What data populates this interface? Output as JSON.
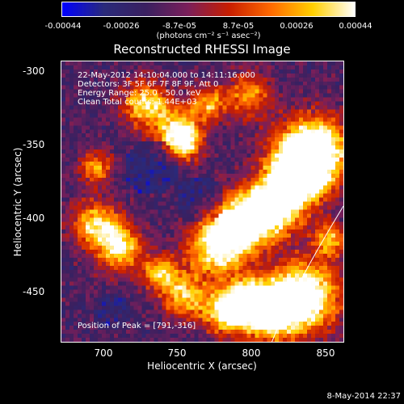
{
  "colorbar": {
    "ticks": [
      "-0.00044",
      "-0.00026",
      "-8.7e-05",
      "8.7e-05",
      "0.00026",
      "0.00044"
    ],
    "units": "(photons cm⁻² s⁻¹ asec⁻²)",
    "colors": [
      "#0000ff",
      "#2a2a7a",
      "#3a2060",
      "#7a1f5a",
      "#c81e00",
      "#ff6a00",
      "#ffd000",
      "#ffffff"
    ]
  },
  "title": "Reconstructed RHESSI Image",
  "info_lines": [
    "22-May-2012 14:10:04.000 to 14:11:16.000",
    "Detectors: 3F 5F 6F 7F 8F 9F, Att 0",
    "Energy Range: 25.0 - 50.0 keV",
    "Clean    Total counts: 1.44E+03"
  ],
  "peak_text": "Position of Peak = [791,-316]",
  "axes": {
    "xlabel": "Heliocentric X (arcsec)",
    "ylabel": "Heliocentric Y (arcsec)",
    "xrange": [
      668,
      862
    ],
    "yrange": [
      -485,
      -290
    ],
    "xticks": [
      "700",
      "750",
      "800",
      "850"
    ],
    "yticks": [
      "-300",
      "-350",
      "-400",
      "-450"
    ]
  },
  "footer": "8-May-2014 22:37"
}
